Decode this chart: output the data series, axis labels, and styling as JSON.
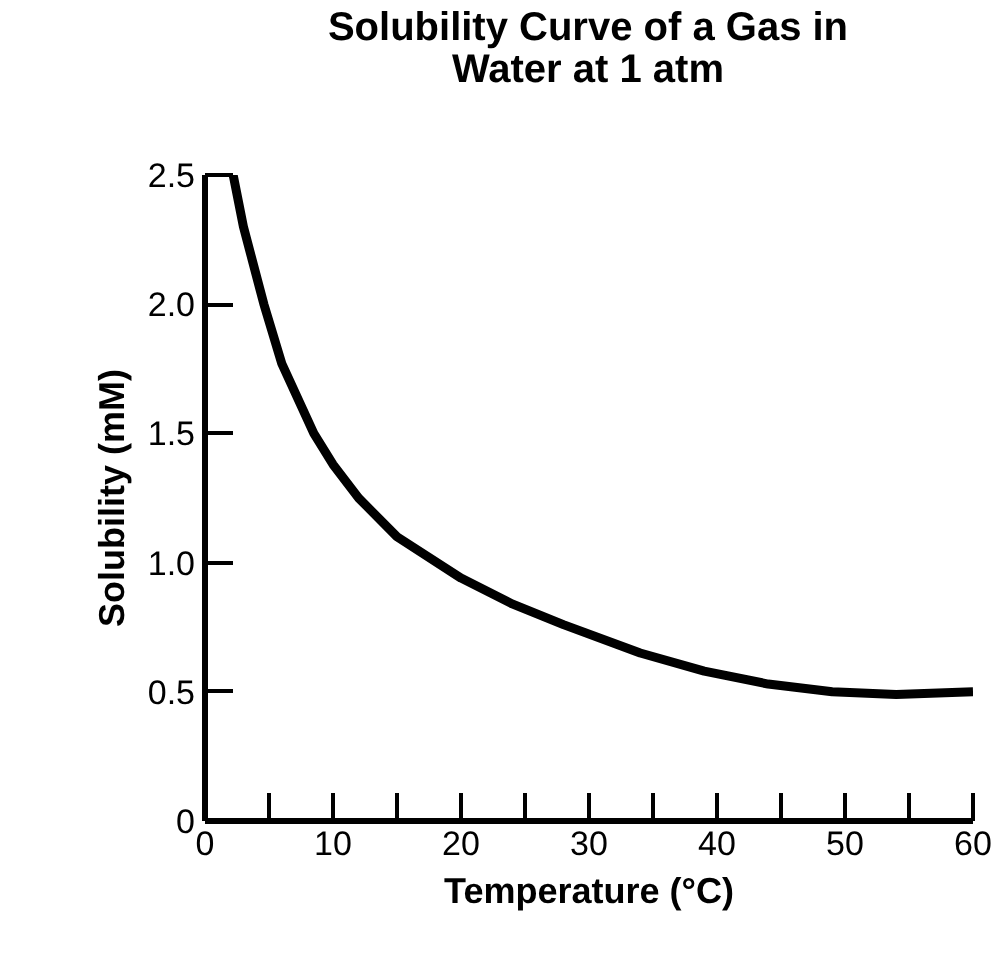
{
  "chart_data": {
    "type": "line",
    "title": "Solubility Curve of a Gas in\nWater at 1 atm",
    "xlabel": "Temperature (°C)",
    "ylabel": "Solubility (mM)",
    "x": [
      2.2,
      3,
      4.6,
      6,
      8.5,
      10,
      12,
      15,
      20,
      24,
      28,
      34,
      39,
      44,
      49,
      54,
      60
    ],
    "series": [
      {
        "color": "#000000",
        "values": [
          2.5,
          2.3,
          2.0,
          1.77,
          1.5,
          1.38,
          1.25,
          1.1,
          0.94,
          0.84,
          0.76,
          0.65,
          0.58,
          0.53,
          0.5,
          0.49,
          0.5
        ]
      }
    ],
    "xlim": [
      0,
      60
    ],
    "ylim": [
      0,
      2.5
    ],
    "xticks": [
      0,
      {
        "value": 5,
        "label": null
      },
      10,
      {
        "value": 15,
        "label": null
      },
      20,
      {
        "value": 25,
        "label": null
      },
      30,
      {
        "value": 35,
        "label": null
      },
      40,
      {
        "value": 45,
        "label": null
      },
      50,
      {
        "value": 55,
        "label": null
      },
      60
    ],
    "yticks": [
      0,
      0.5,
      {
        "value": 1,
        "label": "1.0"
      },
      1.5,
      {
        "value": 2,
        "label": "2.0"
      },
      2.5
    ],
    "grid": false,
    "marker": "none",
    "line_style": "solid"
  }
}
